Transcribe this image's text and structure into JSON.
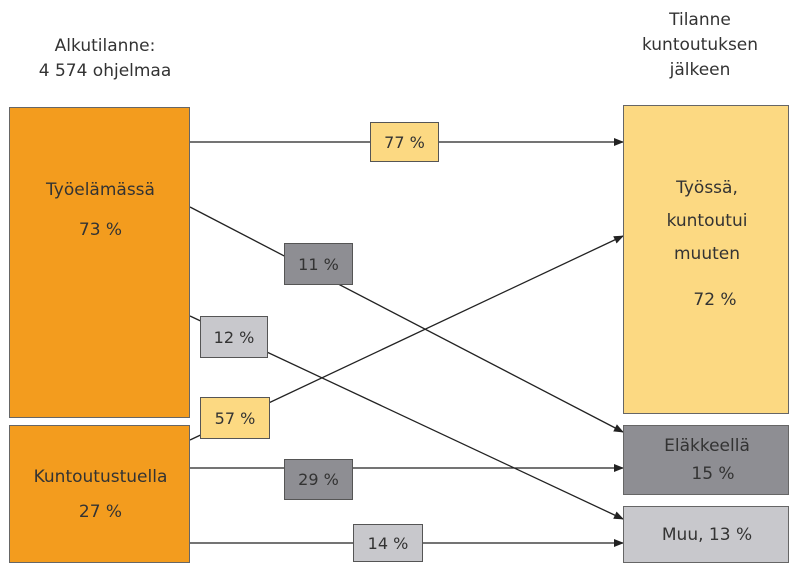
{
  "headers": {
    "left_title": "Alkutilanne:",
    "left_count": "4 574 ohjelmaa",
    "right_line1": "Tilanne",
    "right_line2": "kuntoutuksen",
    "right_line3": "jälkeen"
  },
  "source_nodes": [
    {
      "id": "tyoelamassa",
      "label": "Työelämässä",
      "percent": "73 %",
      "color": "#f39c1e"
    },
    {
      "id": "kuntoutustuella",
      "label": "Kuntoutustuella",
      "percent": "27 %",
      "color": "#f39c1e"
    }
  ],
  "target_nodes": [
    {
      "id": "tyossa",
      "label_line1": "Työssä,",
      "label_line2": "kuntoutui",
      "label_line3": "muuten",
      "percent": "72 %",
      "color": "#fcd982"
    },
    {
      "id": "elakkeella",
      "label": "Eläkkeellä",
      "percent": "15 %",
      "color": "#8e8e93"
    },
    {
      "id": "muu",
      "label": "Muu, 13 %",
      "color": "#c8c8cc"
    }
  ],
  "flows": [
    {
      "from": "Työelämässä",
      "to": "Työssä, kuntoutui muuten",
      "value": "77 %",
      "color": "#fcd982"
    },
    {
      "from": "Työelämässä",
      "to": "Eläkkeellä",
      "value": "11 %",
      "color": "#8e8e93"
    },
    {
      "from": "Työelämässä",
      "to": "Muu",
      "value": "12 %",
      "color": "#c8c8cc"
    },
    {
      "from": "Kuntoutustuella",
      "to": "Työssä, kuntoutui muuten",
      "value": "57 %",
      "color": "#fcd982"
    },
    {
      "from": "Kuntoutustuella",
      "to": "Eläkkeellä",
      "value": "29 %",
      "color": "#8e8e93"
    },
    {
      "from": "Kuntoutustuella",
      "to": "Muu",
      "value": "14 %",
      "color": "#c8c8cc"
    }
  ]
}
